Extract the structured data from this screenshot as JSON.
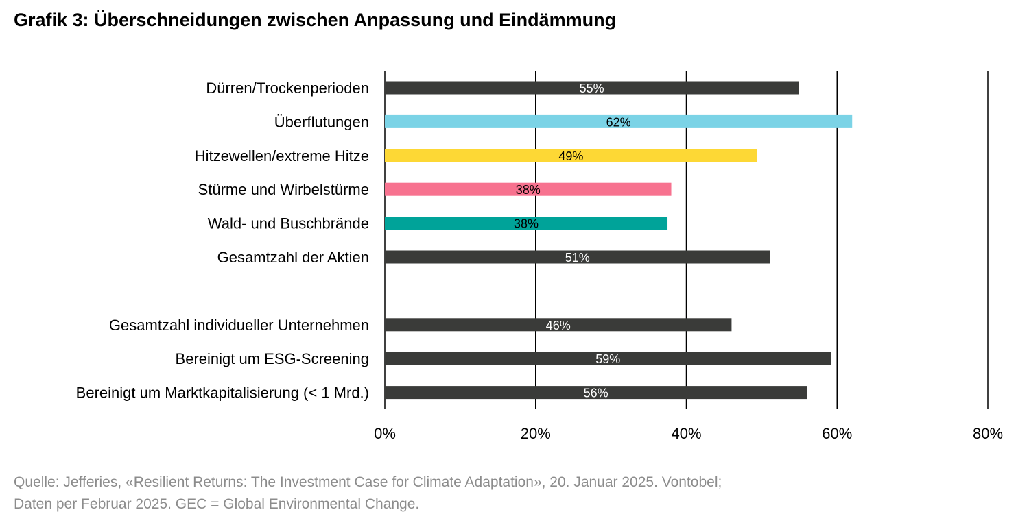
{
  "chart_data": {
    "type": "bar",
    "orientation": "horizontal",
    "title": "Grafik 3: Überschneidungen zwischen Anpassung und Eindämmung",
    "xlabel": "",
    "ylabel": "",
    "xlim": [
      0,
      80
    ],
    "x_ticks": [
      "0%",
      "20%",
      "40%",
      "60%",
      "80%"
    ],
    "x_tick_values": [
      0,
      20,
      40,
      60,
      80
    ],
    "grid": "vertical",
    "legend": "none",
    "groups": [
      {
        "categories": [
          "Dürren/Trockenperioden",
          "Überflutungen",
          "Hitzewellen/extreme Hitze",
          "Stürme und Wirbelstürme",
          "Wald- und Buschbrände",
          "Gesamtzahl der Aktien"
        ],
        "values": [
          54.9,
          62,
          49.4,
          38,
          37.5,
          51.1
        ],
        "labels": [
          "55%",
          "62%",
          "49%",
          "38%",
          "38%",
          "51%"
        ],
        "colors": [
          "#3a3b39",
          "#7bd3e6",
          "#fdd835",
          "#f7728f",
          "#00a399",
          "#3a3b39"
        ],
        "label_colors": [
          "#ffffff",
          "#000000",
          "#000000",
          "#000000",
          "#000000",
          "#ffffff"
        ]
      },
      {
        "categories": [
          "Gesamtzahl individueller Unternehmen",
          "Bereinigt um ESG-Screening",
          "Bereinigt um Marktkapitalisierung (< 1 Mrd.)"
        ],
        "values": [
          46,
          59.2,
          56
        ],
        "labels": [
          "46%",
          "59%",
          "56%"
        ],
        "colors": [
          "#3a3b39",
          "#3a3b39",
          "#3a3b39"
        ],
        "label_colors": [
          "#ffffff",
          "#ffffff",
          "#ffffff"
        ]
      }
    ]
  },
  "source": {
    "line1": "Quelle: Jefferies, «Resilient Returns: The Investment Case for Climate Adaptation», 20. Januar 2025. Vontobel;",
    "line2": "Daten per Februar 2025. GEC = Global Environmental Change."
  }
}
